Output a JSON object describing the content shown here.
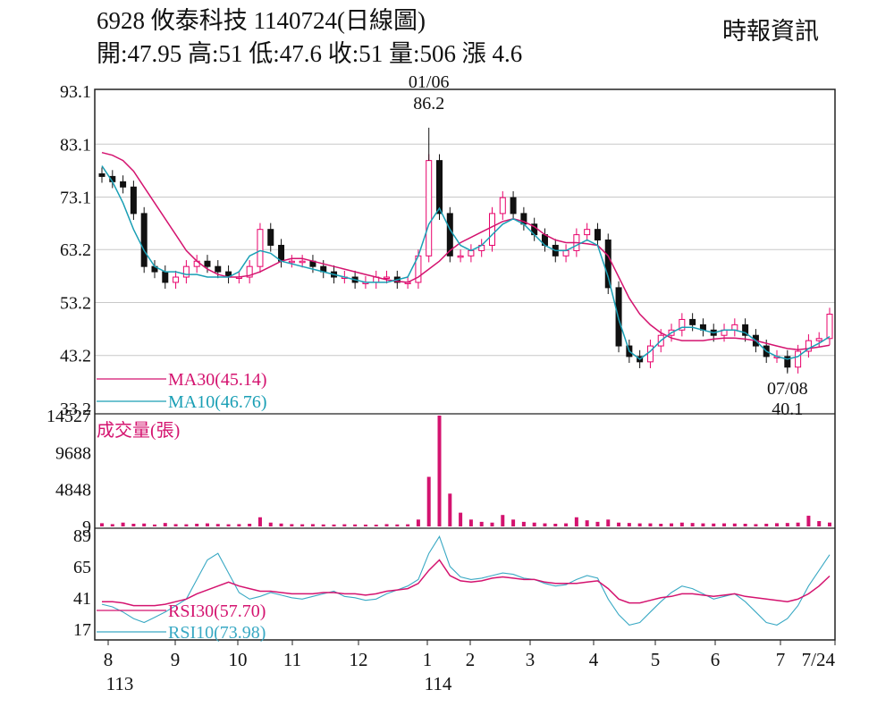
{
  "header": {
    "title": "6928  攸泰科技 1140724(日線圖)",
    "quote_line": "開:47.95 高:51 低:47.6 收:51 量:506 漲 4.6",
    "source": "時報資訊"
  },
  "colors": {
    "up": "#e8006a",
    "down": "#111111",
    "ma30": "#d4136f",
    "ma10": "#1a9fb5",
    "rsi30": "#d4136f",
    "rsi10": "#3aa9c4",
    "volume": "#d4136f",
    "grid": "#c8c8c8",
    "frame": "#222222"
  },
  "chart_data": [
    {
      "type": "candlestick",
      "panel": "price",
      "y_ticks": [
        "93.1",
        "83.1",
        "73.1",
        "63.2",
        "53.2",
        "43.2",
        "33.2"
      ],
      "y_tick_values": [
        93.1,
        83.1,
        73.1,
        63.2,
        53.2,
        43.2,
        33.2
      ],
      "ylim": [
        33.2,
        93.1
      ],
      "grid": true,
      "x_month_labels": [
        "8",
        "9",
        "10",
        "11",
        "12",
        "1",
        "2",
        "3",
        "4",
        "5",
        "6",
        "7",
        "7/24"
      ],
      "x_year_labels": [
        "113",
        "114"
      ],
      "annotations": [
        {
          "label_date": "01/06",
          "label_value": "86.2",
          "value": 86.2,
          "kind": "high"
        },
        {
          "label_date": "07/08",
          "label_value": "40.1",
          "value": 40.1,
          "kind": "low"
        }
      ],
      "legend": [
        {
          "label": "MA30(45.14)",
          "series": "ma30"
        },
        {
          "label": "MA10(46.76)",
          "series": "ma10"
        }
      ],
      "series": [
        {
          "name": "MA30",
          "values": [
            81.5,
            81,
            80,
            78,
            75,
            72,
            69,
            66,
            63,
            61,
            59.5,
            58.5,
            58,
            58,
            58.3,
            59,
            60,
            61,
            61.5,
            61.5,
            61,
            60.5,
            60,
            59.5,
            59,
            58.5,
            58,
            57.5,
            57.2,
            57,
            58,
            59.5,
            61,
            63,
            64.5,
            65.5,
            66.5,
            67.5,
            68.5,
            69,
            68.5,
            67.5,
            66,
            65,
            64.5,
            64.5,
            64.3,
            64,
            62,
            58,
            54,
            51,
            49,
            47.5,
            46.5,
            46,
            46,
            46,
            46.3,
            46.5,
            46.5,
            46.3,
            46,
            45.5,
            45,
            44.5,
            44.3,
            44.5,
            44.8,
            45.14
          ]
        },
        {
          "name": "MA10",
          "values": [
            79,
            76,
            72,
            67,
            63,
            60,
            59,
            59,
            58.5,
            58.5,
            58,
            58,
            58,
            59,
            62,
            63,
            62.5,
            61,
            60.5,
            60,
            59.5,
            59,
            58.5,
            58,
            57.5,
            57,
            57,
            57,
            57.5,
            58,
            62,
            68,
            71,
            67,
            64,
            63,
            64,
            66,
            68,
            69,
            68,
            66,
            64,
            63,
            63,
            64,
            65,
            64,
            58,
            50,
            44,
            42.5,
            44,
            46,
            47.5,
            48.5,
            48.5,
            48,
            47.5,
            48,
            48,
            47.5,
            46,
            44,
            43,
            42.5,
            43,
            44.5,
            45.5,
            46.76
          ]
        },
        {
          "name": "candles_close",
          "values": [
            77,
            76,
            75,
            70,
            60,
            59,
            57,
            58,
            60,
            61,
            60,
            59,
            58,
            58,
            60,
            67,
            64,
            61,
            61,
            61,
            60,
            59,
            58,
            58,
            57,
            57,
            58,
            58,
            57,
            57,
            62,
            80,
            70,
            62,
            62,
            63,
            64,
            70,
            73,
            70,
            68,
            66,
            64,
            62,
            63,
            66,
            67,
            65,
            56,
            45,
            43,
            42,
            45,
            47,
            48,
            50,
            49,
            48,
            47,
            48,
            49,
            47,
            45,
            43,
            43,
            41,
            44,
            46,
            46.4,
            51
          ]
        }
      ]
    },
    {
      "type": "bar",
      "panel": "volume",
      "title": "成交量(張)",
      "y_ticks": [
        "14527",
        "9688",
        "4848",
        "9"
      ],
      "y_tick_values": [
        14527,
        9688,
        4848,
        9
      ],
      "ylim": [
        0,
        14527
      ],
      "peak": 14527,
      "values": [
        420,
        300,
        500,
        350,
        380,
        250,
        450,
        300,
        280,
        350,
        400,
        320,
        280,
        300,
        350,
        1200,
        500,
        380,
        300,
        280,
        300,
        260,
        250,
        280,
        260,
        240,
        230,
        300,
        260,
        280,
        900,
        6500,
        14527,
        4300,
        1800,
        900,
        600,
        500,
        1500,
        900,
        600,
        500,
        400,
        350,
        400,
        1200,
        800,
        600,
        900,
        500,
        450,
        400,
        400,
        350,
        400,
        500,
        450,
        400,
        380,
        400,
        380,
        350,
        300,
        350,
        420,
        450,
        500,
        1400,
        700,
        506
      ]
    },
    {
      "type": "line",
      "panel": "rsi",
      "y_ticks": [
        "89",
        "65",
        "41",
        "17"
      ],
      "y_tick_values": [
        89,
        65,
        41,
        17
      ],
      "ylim": [
        10,
        93
      ],
      "legend": [
        {
          "label": "RSI30(57.70)",
          "series": "rsi30"
        },
        {
          "label": "RSI10(73.98)",
          "series": "rsi10"
        }
      ],
      "series": [
        {
          "name": "RSI30",
          "values": [
            38,
            38,
            37,
            35,
            35,
            35,
            36,
            38,
            40,
            44,
            47,
            50,
            53,
            50,
            48,
            46,
            46,
            45,
            44,
            44,
            44,
            45,
            45,
            44,
            44,
            43,
            44,
            46,
            47,
            48,
            52,
            62,
            70,
            58,
            54,
            53,
            54,
            56,
            57,
            56,
            55,
            55,
            53,
            52,
            52,
            52,
            53,
            54,
            48,
            40,
            37,
            37,
            39,
            41,
            42,
            44,
            44,
            43,
            42,
            43,
            44,
            42,
            41,
            40,
            39,
            38,
            40,
            44,
            50,
            57.7
          ]
        },
        {
          "name": "RSI10",
          "values": [
            36,
            34,
            30,
            25,
            22,
            26,
            30,
            35,
            40,
            55,
            70,
            75,
            60,
            45,
            40,
            42,
            45,
            43,
            41,
            40,
            42,
            44,
            46,
            42,
            41,
            39,
            40,
            44,
            47,
            50,
            55,
            75,
            88,
            65,
            57,
            55,
            56,
            58,
            60,
            59,
            56,
            55,
            52,
            50,
            51,
            55,
            58,
            56,
            40,
            28,
            20,
            22,
            30,
            38,
            45,
            50,
            48,
            44,
            40,
            42,
            44,
            38,
            30,
            22,
            20,
            25,
            35,
            50,
            62,
            73.98
          ]
        }
      ]
    }
  ]
}
